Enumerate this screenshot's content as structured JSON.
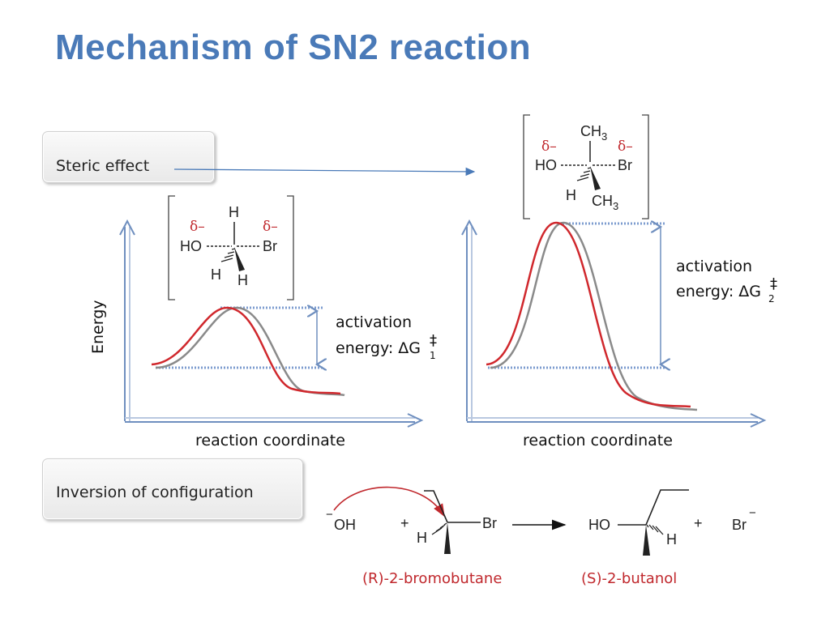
{
  "title": "Mechanism of SN2 reaction",
  "sections": {
    "steric_effect": "Steric effect",
    "inversion": "Inversion of configuration"
  },
  "chart_left": {
    "ylabel": "Energy",
    "xlabel": "reaction coordinate",
    "annotation_line1": "activation",
    "annotation_line2": "energy: ΔG",
    "subscript": "1",
    "dagger": "‡"
  },
  "chart_right": {
    "xlabel": "reaction coordinate",
    "annotation_line1": "activation",
    "annotation_line2": "energy: ΔG",
    "subscript": "2",
    "dagger": "‡"
  },
  "ts_left": {
    "top": "H",
    "left": "HO",
    "right": "Br",
    "bottom1": "H",
    "bottom2": "H",
    "delta_left": "δ–",
    "delta_right": "δ–"
  },
  "ts_right": {
    "top": "CH3",
    "left": "HO",
    "right": "Br",
    "bottom1": "H",
    "bottom2": "CH3",
    "delta_left": "δ–",
    "delta_right": "δ–"
  },
  "reaction": {
    "nucleophile": "OH",
    "plus1": "+",
    "h1": "H",
    "br1": "Br",
    "ho2": "HO",
    "h2": "H",
    "plus2": "+",
    "bromide": "Br",
    "reactant_name": "(R)-2-bromobutane",
    "product_name": "(S)-2-butanol"
  },
  "colors": {
    "title": "#4a7ab8",
    "red_curve": "#d0282d",
    "gray_curve": "#8a8a8a",
    "axis": "#6f8fbf"
  }
}
